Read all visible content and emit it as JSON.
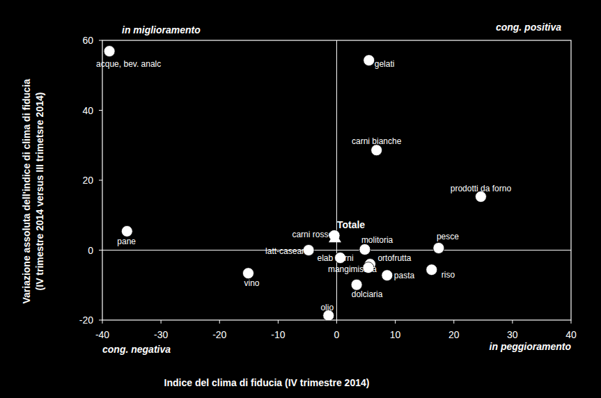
{
  "chart_data": {
    "type": "scatter",
    "x_label": "Indice del clima di fiducia (IV trimestre 2014)",
    "y_label": [
      "Variazione assoluta dell'indice  di clima di fiducia",
      "(IV trimestre 2014 versus III trimetsre 2014)"
    ],
    "annotations": [
      "in miglioramento",
      "cong. positiva",
      "cong. negativa",
      "in peggioramento"
    ],
    "xlim": [
      -40,
      40
    ],
    "xticks": [
      -40,
      -30,
      -20,
      -10,
      0,
      10,
      20,
      30,
      40
    ],
    "ylim": [
      -20,
      60
    ],
    "yticks": [
      -20,
      0,
      20,
      40,
      60
    ],
    "grid": false,
    "color": "#ffffff",
    "series": [
      {
        "marker": "circle",
        "color": "#ffffff",
        "labels": [
          "acque, bev. analc",
          "gelati",
          "carni bianche",
          "prodotti da forno",
          "pane",
          "pesce",
          "carni rosse",
          "latt-casear",
          "elab carni",
          "molitoria",
          "ortofrutta",
          "mangimistica",
          "riso",
          "pasta",
          "dolciaria",
          "vino",
          "olio"
        ],
        "x": [
          -38.8,
          5.5,
          6.8,
          24.6,
          -35.8,
          17.4,
          -0.4,
          -4.8,
          0.6,
          4.8,
          5.7,
          5.4,
          16.2,
          8.6,
          3.4,
          -15.1,
          -1.4
        ],
        "values": [
          56.9,
          54.3,
          28.6,
          15.3,
          5.4,
          0.6,
          4.2,
          0.0,
          -2.2,
          0.2,
          -4.0,
          -5.0,
          -5.6,
          -7.2,
          -9.9,
          -6.6,
          -18.7
        ]
      },
      {
        "marker": "triangle",
        "color": "#ffffff",
        "labels": [
          "Totale"
        ],
        "x": [
          -0.3
        ],
        "values": [
          3.5
        ]
      }
    ]
  }
}
